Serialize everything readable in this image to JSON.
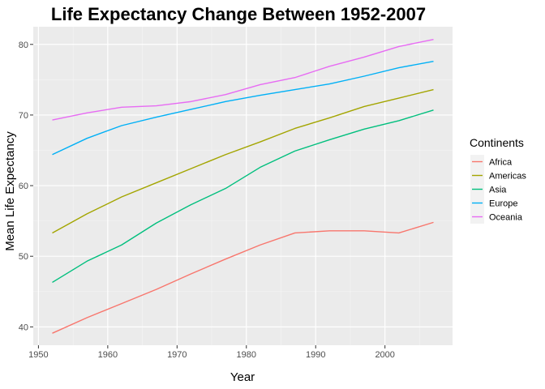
{
  "chart_data": {
    "type": "line",
    "title": "Life Expectancy Change Between 1952-2007",
    "xlabel": "Year",
    "ylabel": "Mean Life Expectancy",
    "xlim": [
      1949.25,
      2009.75
    ],
    "ylim": [
      37.4,
      82.5
    ],
    "x_ticks": [
      1950,
      1960,
      1970,
      1980,
      1990,
      2000
    ],
    "y_ticks": [
      40,
      50,
      60,
      70,
      80
    ],
    "grid": true,
    "legend": {
      "title": "Continents",
      "placement": "right"
    },
    "x": [
      1952,
      1957,
      1962,
      1967,
      1972,
      1977,
      1982,
      1987,
      1992,
      1997,
      2002,
      2007
    ],
    "series": [
      {
        "name": "Africa",
        "color": "#F8766D",
        "values": [
          39.1,
          41.3,
          43.3,
          45.3,
          47.5,
          49.6,
          51.6,
          53.3,
          53.6,
          53.6,
          53.3,
          54.8
        ]
      },
      {
        "name": "Americas",
        "color": "#A3A500",
        "values": [
          53.3,
          56.0,
          58.4,
          60.4,
          62.4,
          64.4,
          66.2,
          68.1,
          69.6,
          71.2,
          72.4,
          73.6
        ]
      },
      {
        "name": "Asia",
        "color": "#00BF7D",
        "values": [
          46.3,
          49.3,
          51.6,
          54.7,
          57.3,
          59.6,
          62.6,
          64.9,
          66.5,
          68.0,
          69.2,
          70.7
        ]
      },
      {
        "name": "Europe",
        "color": "#00B0F6",
        "values": [
          64.4,
          66.7,
          68.5,
          69.7,
          70.8,
          71.9,
          72.8,
          73.6,
          74.4,
          75.5,
          76.7,
          77.6
        ]
      },
      {
        "name": "Oceania",
        "color": "#E76BF3",
        "values": [
          69.3,
          70.3,
          71.1,
          71.3,
          71.9,
          72.9,
          74.3,
          75.3,
          76.9,
          78.2,
          79.7,
          80.7
        ]
      }
    ]
  }
}
